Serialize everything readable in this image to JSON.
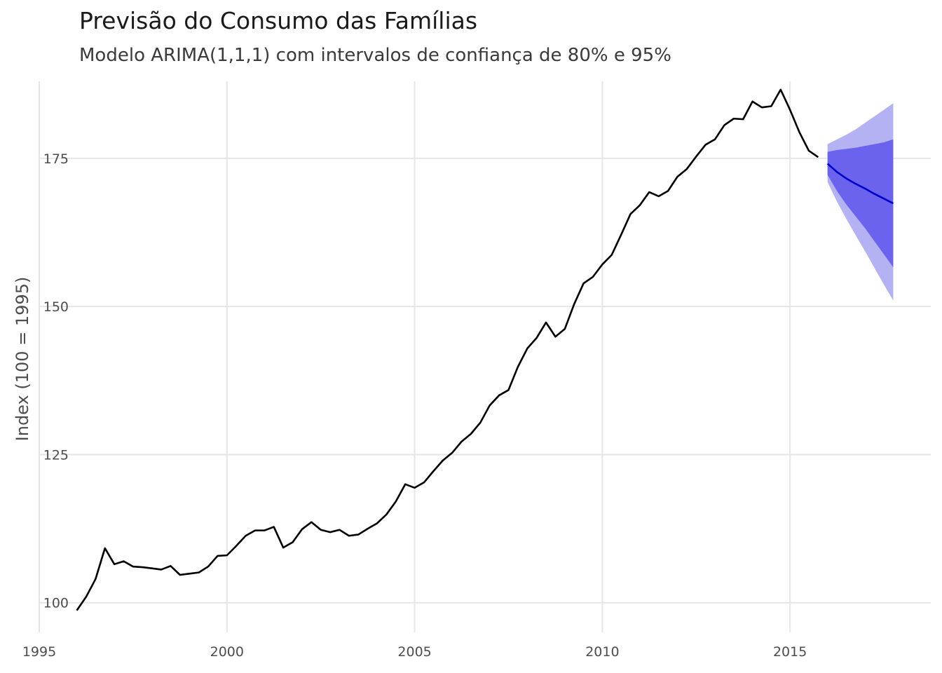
{
  "chart_data": {
    "type": "line",
    "title": "Previsão do Consumo das Famílias",
    "subtitle": "Modelo ARIMA(1,1,1) com intervalos de confiança de 80% e 95%",
    "xlabel": "",
    "ylabel": "Index (100 = 1995)",
    "xlim": [
      1995,
      2018.75
    ],
    "ylim": [
      95,
      188
    ],
    "x_ticks": [
      1995,
      2000,
      2005,
      2010,
      2015
    ],
    "y_ticks": [
      100,
      125,
      150,
      175
    ],
    "grid": true,
    "legend": "none",
    "colors": {
      "history": "#000000",
      "forecast": "#0000cc",
      "band80": "#6b63ee",
      "band95": "#b5b2f3",
      "grid": "#e6e6e6"
    },
    "history": {
      "x": [
        1996.0,
        1996.25,
        1996.5,
        1996.75,
        1997.0,
        1997.25,
        1997.5,
        1997.75,
        1998.0,
        1998.25,
        1998.5,
        1998.75,
        1999.0,
        1999.25,
        1999.5,
        1999.75,
        2000.0,
        2000.25,
        2000.5,
        2000.75,
        2001.0,
        2001.25,
        2001.5,
        2001.75,
        2002.0,
        2002.25,
        2002.5,
        2002.75,
        2003.0,
        2003.25,
        2003.5,
        2003.75,
        2004.0,
        2004.25,
        2004.5,
        2004.75,
        2005.0,
        2005.25,
        2005.5,
        2005.75,
        2006.0,
        2006.25,
        2006.5,
        2006.75,
        2007.0,
        2007.25,
        2007.5,
        2007.75,
        2008.0,
        2008.25,
        2008.5,
        2008.75,
        2009.0,
        2009.25,
        2009.5,
        2009.75,
        2010.0,
        2010.25,
        2010.5,
        2010.75,
        2011.0,
        2011.25,
        2011.5,
        2011.75,
        2012.0,
        2012.25,
        2012.5,
        2012.75,
        2013.0,
        2013.25,
        2013.5,
        2013.75,
        2014.0,
        2014.25,
        2014.5,
        2014.75,
        2015.0,
        2015.25,
        2015.5,
        2015.75
      ],
      "y": [
        98.7,
        101.0,
        104.0,
        109.2,
        106.5,
        107.0,
        106.1,
        106.0,
        105.8,
        105.6,
        106.2,
        104.7,
        104.9,
        105.1,
        106.1,
        107.9,
        108.0,
        109.6,
        111.3,
        112.2,
        112.2,
        112.8,
        109.3,
        110.2,
        112.4,
        113.6,
        112.3,
        111.9,
        112.3,
        111.3,
        111.5,
        112.5,
        113.4,
        114.9,
        117.1,
        120.0,
        119.4,
        120.3,
        122.2,
        124.0,
        125.3,
        127.2,
        128.5,
        130.4,
        133.3,
        135.0,
        135.9,
        139.8,
        142.9,
        144.7,
        147.3,
        144.9,
        146.2,
        150.4,
        153.9,
        155.0,
        157.1,
        158.7,
        162.1,
        165.6,
        167.1,
        169.3,
        168.6,
        169.5,
        171.9,
        173.2,
        175.3,
        177.3,
        178.2,
        180.6,
        181.7,
        181.6,
        184.6,
        183.6,
        183.8,
        186.6,
        183.2,
        179.4,
        176.3,
        175.2
      ]
    },
    "forecast": {
      "x": [
        2016.0,
        2016.25,
        2016.5,
        2016.75,
        2017.0,
        2017.25,
        2017.5,
        2017.75
      ],
      "mean": [
        174.1,
        172.7,
        171.6,
        170.7,
        169.9,
        169.0,
        168.2,
        167.4
      ],
      "lo80": [
        172.2,
        169.5,
        167.2,
        165.2,
        163.2,
        161.0,
        158.8,
        156.6
      ],
      "hi80": [
        176.1,
        176.4,
        176.6,
        176.8,
        177.1,
        177.4,
        177.7,
        178.2
      ],
      "lo95": [
        171.0,
        167.7,
        164.8,
        162.0,
        159.3,
        156.5,
        153.7,
        151.0
      ],
      "hi95": [
        177.4,
        178.2,
        179.0,
        179.9,
        181.0,
        182.1,
        183.2,
        184.3
      ]
    }
  }
}
